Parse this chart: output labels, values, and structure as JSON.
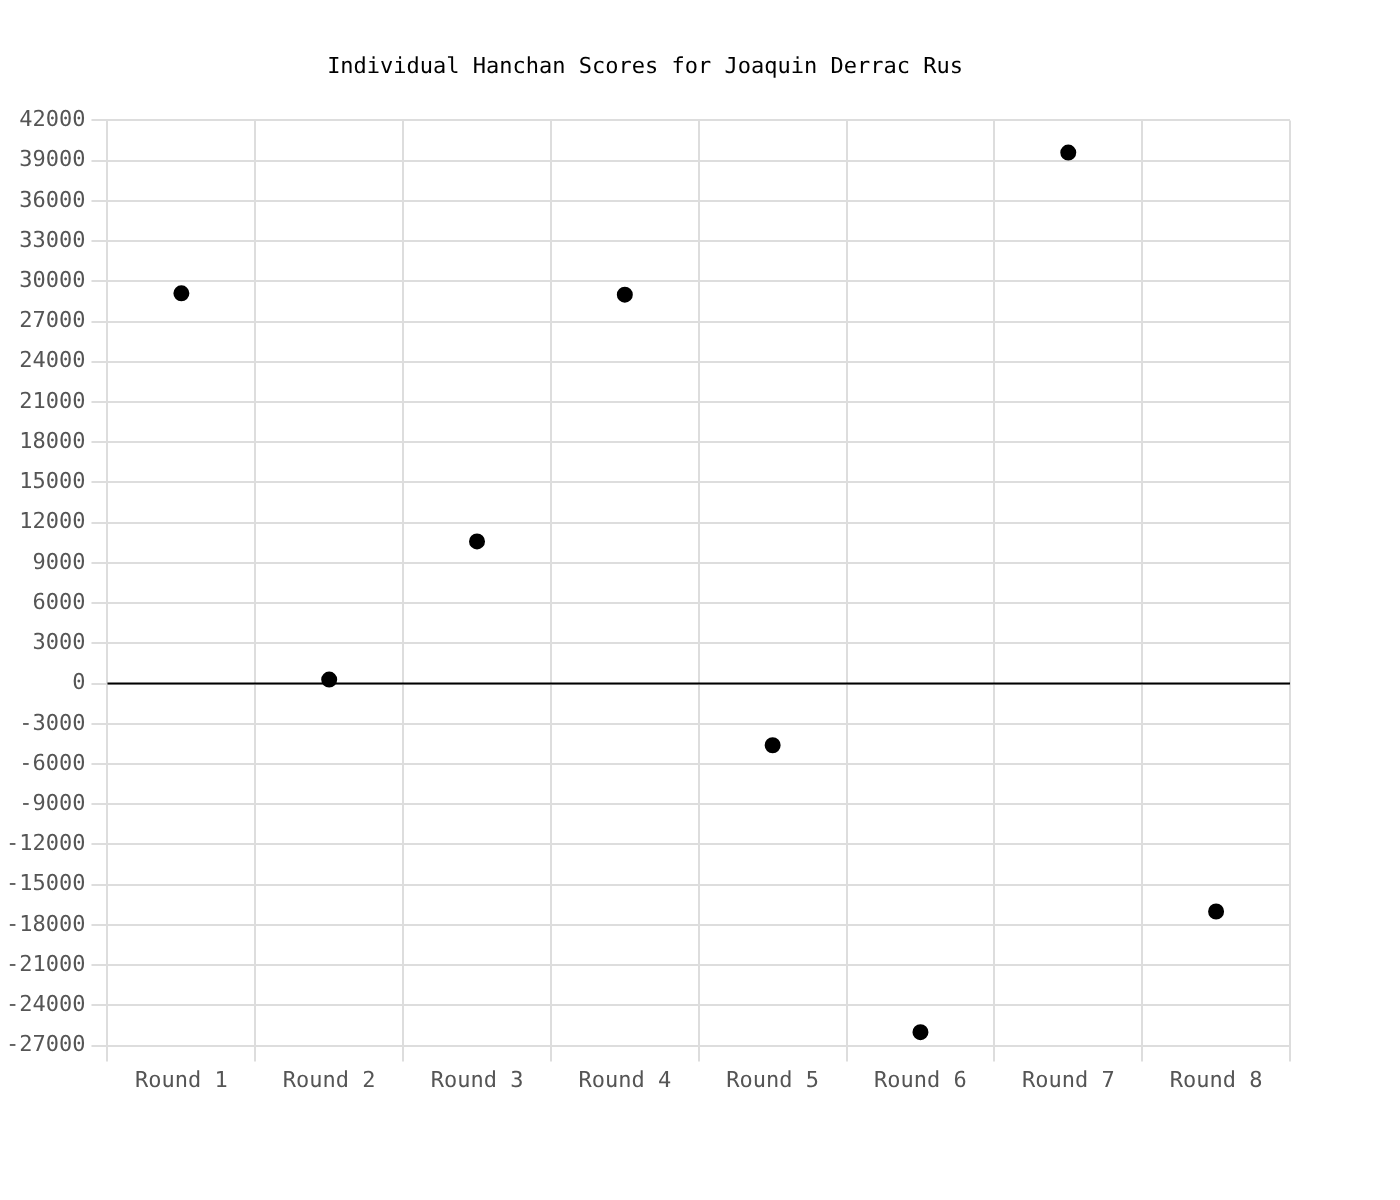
{
  "chart_data": {
    "type": "scatter",
    "title": "Individual Hanchan Scores for Joaquin Derrac Rus",
    "categories": [
      "Round 1",
      "Round 2",
      "Round 3",
      "Round 4",
      "Round 5",
      "Round 6",
      "Round 7",
      "Round 8"
    ],
    "series": [
      {
        "color": "#000000",
        "values": [
          29100,
          300,
          10600,
          29000,
          -4600,
          -26000,
          39600,
          -17000
        ]
      }
    ],
    "ylim": [
      -27000,
      42000
    ],
    "yticks": [
      -27000,
      -24000,
      -21000,
      -18000,
      -15000,
      -12000,
      -9000,
      -6000,
      -3000,
      0,
      3000,
      6000,
      9000,
      12000,
      15000,
      18000,
      21000,
      24000,
      27000,
      30000,
      33000,
      36000,
      39000,
      42000
    ],
    "ref_lines": [
      {
        "axis": "y",
        "value": 0,
        "color": "#000000"
      }
    ],
    "grid": true,
    "legend": false,
    "marker": "circle"
  }
}
